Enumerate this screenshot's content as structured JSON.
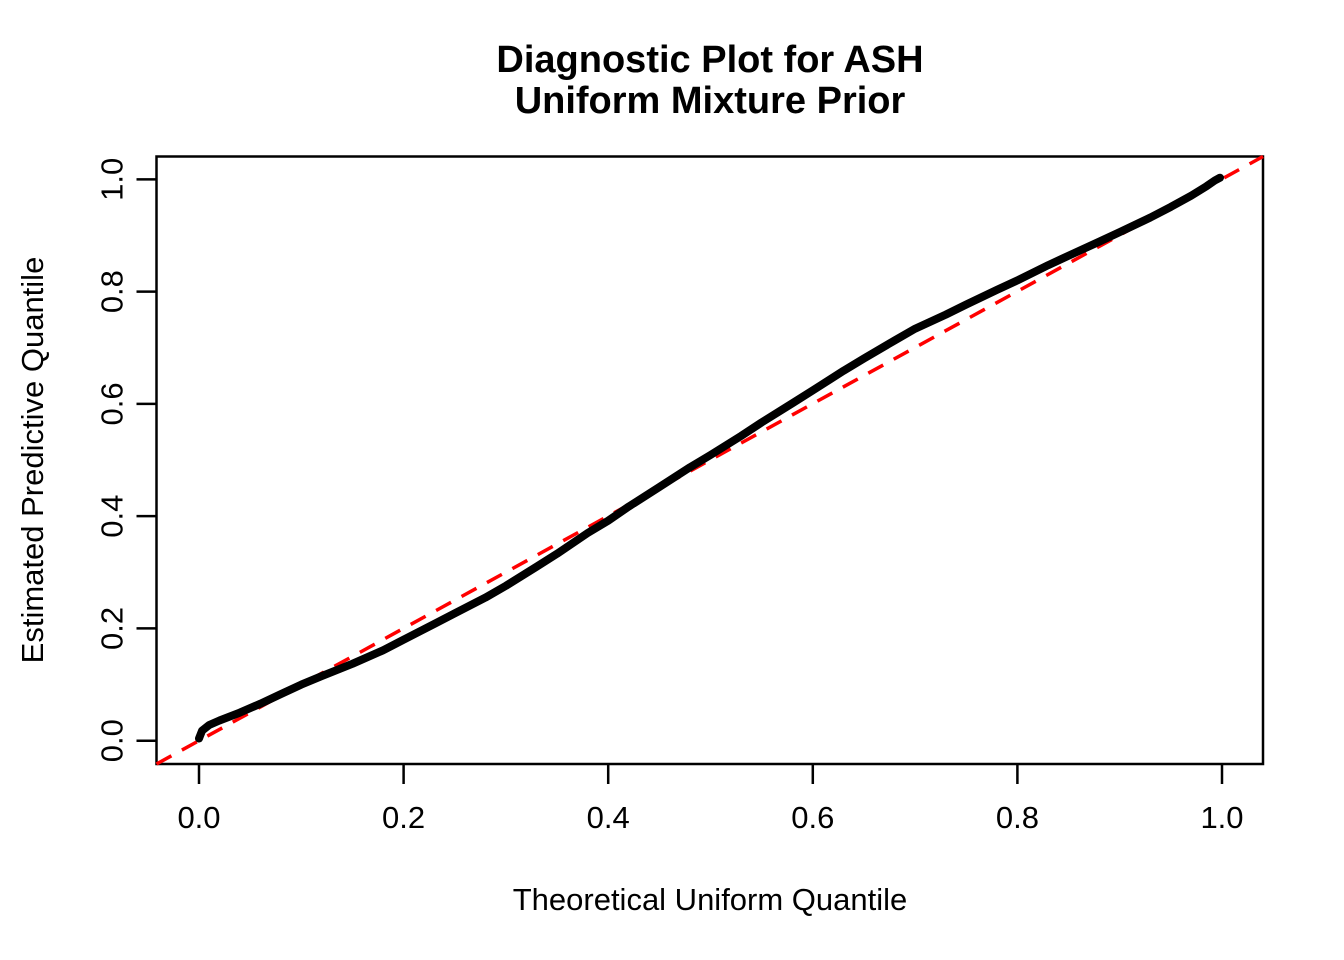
{
  "figure": {
    "title_line1": "Diagnostic Plot for ASH",
    "title_line2": "Uniform Mixture Prior",
    "x_axis_label": "Theoretical Uniform Quantile",
    "y_axis_label": "Estimated Predictive Quantile"
  },
  "colors": {
    "background": "#FFFFFF",
    "axis": "#000000",
    "curve": "#000000",
    "reference_line": "#FF0000"
  },
  "chart_data": {
    "type": "line",
    "title": "Diagnostic Plot for ASH\nUniform Mixture Prior",
    "xlabel": "Theoretical Uniform Quantile",
    "ylabel": "Estimated Predictive Quantile",
    "xlim": [
      0,
      1
    ],
    "ylim": [
      0,
      1
    ],
    "grid": false,
    "legend": "none",
    "x_ticks": [
      0.0,
      0.2,
      0.4,
      0.6,
      0.8,
      1.0
    ],
    "x_tick_labels": [
      "0.0",
      "0.2",
      "0.4",
      "0.6",
      "0.8",
      "1.0"
    ],
    "y_ticks": [
      0.0,
      0.2,
      0.4,
      0.6,
      0.8,
      1.0
    ],
    "y_tick_labels": [
      "0.0",
      "0.2",
      "0.4",
      "0.6",
      "0.8",
      "1.0"
    ],
    "series": [
      {
        "name": "estimated-predictive-quantile-curve",
        "type": "line",
        "style": "solid",
        "color": "#000000",
        "line_width": 8,
        "points": [
          [
            0.0,
            0.004
          ],
          [
            0.003,
            0.018
          ],
          [
            0.01,
            0.028
          ],
          [
            0.02,
            0.036
          ],
          [
            0.04,
            0.05
          ],
          [
            0.06,
            0.066
          ],
          [
            0.08,
            0.083
          ],
          [
            0.1,
            0.1
          ],
          [
            0.12,
            0.115
          ],
          [
            0.15,
            0.137
          ],
          [
            0.18,
            0.161
          ],
          [
            0.2,
            0.18
          ],
          [
            0.23,
            0.208
          ],
          [
            0.25,
            0.227
          ],
          [
            0.28,
            0.255
          ],
          [
            0.3,
            0.276
          ],
          [
            0.33,
            0.31
          ],
          [
            0.35,
            0.333
          ],
          [
            0.38,
            0.37
          ],
          [
            0.4,
            0.392
          ],
          [
            0.42,
            0.417
          ],
          [
            0.45,
            0.452
          ],
          [
            0.48,
            0.487
          ],
          [
            0.5,
            0.509
          ],
          [
            0.53,
            0.543
          ],
          [
            0.55,
            0.567
          ],
          [
            0.58,
            0.601
          ],
          [
            0.6,
            0.624
          ],
          [
            0.63,
            0.659
          ],
          [
            0.65,
            0.681
          ],
          [
            0.68,
            0.713
          ],
          [
            0.7,
            0.734
          ],
          [
            0.73,
            0.759
          ],
          [
            0.75,
            0.777
          ],
          [
            0.78,
            0.803
          ],
          [
            0.8,
            0.82
          ],
          [
            0.83,
            0.847
          ],
          [
            0.85,
            0.864
          ],
          [
            0.88,
            0.889
          ],
          [
            0.9,
            0.906
          ],
          [
            0.93,
            0.932
          ],
          [
            0.95,
            0.951
          ],
          [
            0.97,
            0.971
          ],
          [
            0.985,
            0.988
          ],
          [
            0.993,
            0.998
          ],
          [
            0.998,
            1.003
          ]
        ]
      },
      {
        "name": "reference-diagonal-y-equals-x",
        "type": "line",
        "style": "dashed",
        "color": "#FF0000",
        "line_width": 3.5,
        "points": [
          [
            0,
            0
          ],
          [
            1,
            1
          ]
        ]
      }
    ]
  }
}
